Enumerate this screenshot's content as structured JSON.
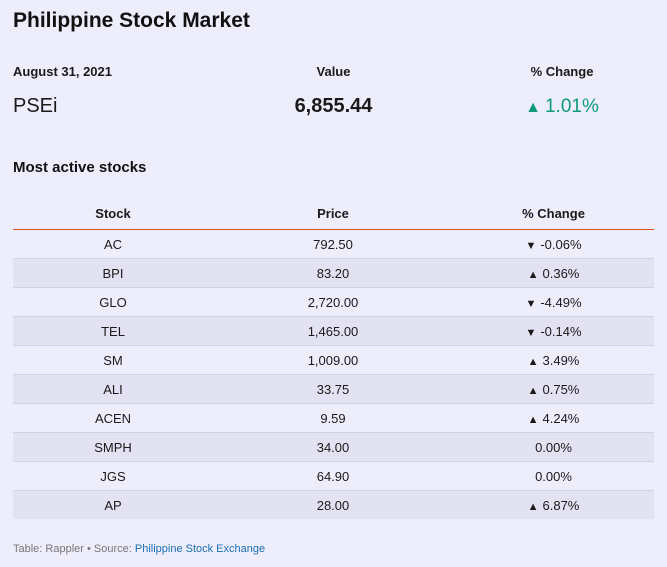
{
  "title": "Philippine Stock Market",
  "summary": {
    "date_label": "August 31, 2021",
    "value_header": "Value",
    "change_header": "% Change",
    "index_name": "PSEi",
    "index_value": "6,855.44",
    "index_change": "1.01%",
    "index_direction": "up"
  },
  "section_title": "Most active stocks",
  "table": {
    "headers": [
      "Stock",
      "Price",
      "% Change"
    ],
    "rows": [
      {
        "stock": "AC",
        "price": "792.50",
        "change": "-0.06%",
        "direction": "down"
      },
      {
        "stock": "BPI",
        "price": "83.20",
        "change": "0.36%",
        "direction": "up"
      },
      {
        "stock": "GLO",
        "price": "2,720.00",
        "change": "-4.49%",
        "direction": "down"
      },
      {
        "stock": "TEL",
        "price": "1,465.00",
        "change": "-0.14%",
        "direction": "down"
      },
      {
        "stock": "SM",
        "price": "1,009.00",
        "change": "3.49%",
        "direction": "up"
      },
      {
        "stock": "ALI",
        "price": "33.75",
        "change": "0.75%",
        "direction": "up"
      },
      {
        "stock": "ACEN",
        "price": "9.59",
        "change": "4.24%",
        "direction": "up"
      },
      {
        "stock": "SMPH",
        "price": "34.00",
        "change": "0.00%",
        "direction": "none"
      },
      {
        "stock": "JGS",
        "price": "64.90",
        "change": "0.00%",
        "direction": "none"
      },
      {
        "stock": "AP",
        "price": "28.00",
        "change": "6.87%",
        "direction": "up"
      }
    ]
  },
  "footer": {
    "prefix": "Table: Rappler • Source: ",
    "source_link": "Philippine Stock Exchange"
  },
  "colors": {
    "up": "#0f9b7a",
    "down": "#d0021b",
    "header_rule": "#d9532b",
    "background": "#ededfc",
    "stripe": "#e2e2f3",
    "link": "#1a6fb0"
  }
}
